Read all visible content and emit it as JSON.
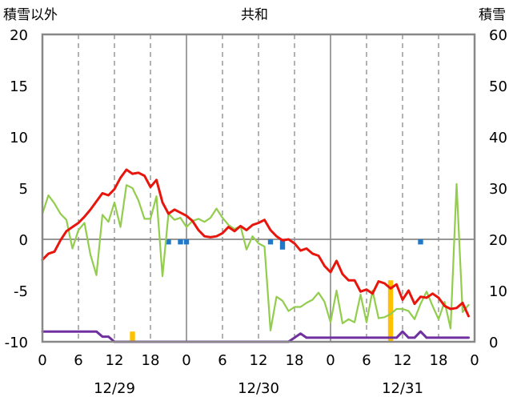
{
  "chart_data": {
    "type": "line",
    "title": "共和",
    "left_axis_label": "積雪以外",
    "right_axis_label": "積雪",
    "x_unit": "hour",
    "x_ticks": [
      "0",
      "6",
      "12",
      "18",
      "0",
      "6",
      "12",
      "18",
      "0",
      "6",
      "12",
      "18",
      "0"
    ],
    "x_tick_hours": [
      0,
      6,
      12,
      18,
      24,
      30,
      36,
      42,
      48,
      54,
      60,
      66,
      72
    ],
    "dates": [
      {
        "label": "12/29",
        "hour": 12
      },
      {
        "label": "12/30",
        "hour": 36
      },
      {
        "label": "12/31",
        "hour": 60
      }
    ],
    "left_ylim": [
      -10,
      20
    ],
    "left_ticks": [
      "-10",
      "-5",
      "0",
      "5",
      "10",
      "15",
      "20"
    ],
    "right_ylim": [
      0,
      60
    ],
    "right_ticks": [
      "0",
      "10",
      "20",
      "30",
      "40",
      "50",
      "60"
    ],
    "grid": {
      "x_minor": "dashed every 6h",
      "x_major": "solid at 0h",
      "y_zero": "solid"
    },
    "series": [
      {
        "axis": "left",
        "color": "#e8150d",
        "width": 3,
        "x": [
          0,
          1,
          2,
          3,
          4,
          5,
          6,
          7,
          8,
          9,
          10,
          11,
          12,
          13,
          14,
          15,
          16,
          17,
          18,
          19,
          20,
          21,
          22,
          23,
          24,
          25,
          26,
          27,
          28,
          29,
          30,
          31,
          32,
          33,
          34,
          35,
          36,
          37,
          38,
          39,
          40,
          41,
          42,
          43,
          44,
          45,
          46,
          47,
          48,
          49,
          50,
          51,
          52,
          53,
          54,
          55,
          56,
          57,
          58,
          59,
          60,
          61,
          62,
          63,
          64,
          65,
          66,
          67,
          68,
          69,
          70,
          71
        ],
        "y": [
          -2,
          -1.4,
          -1.2,
          -0.1,
          0.8,
          1.2,
          1.6,
          2.2,
          2.9,
          3.7,
          4.5,
          4.3,
          4.9,
          6,
          6.8,
          6.4,
          6.5,
          6.2,
          5.1,
          5.8,
          3.6,
          2.5,
          2.9,
          2.6,
          2.3,
          1.8,
          0.9,
          0.3,
          0.2,
          0.3,
          0.6,
          1.2,
          0.8,
          1.3,
          0.9,
          1.4,
          1.6,
          1.9,
          0.9,
          0.3,
          -0.1,
          0,
          -0.4,
          -1.1,
          -0.9,
          -1.4,
          -1.6,
          -2.6,
          -3.2,
          -2.1,
          -3.4,
          -4,
          -4,
          -5.1,
          -4.9,
          -5.3,
          -4.1,
          -4.3,
          -4.8,
          -4.4,
          -5.9,
          -5,
          -6.3,
          -5.6,
          -5.7,
          -5.3,
          -5.7,
          -6.5,
          -6.8,
          -6.7,
          -6.2,
          -7.5
        ]
      },
      {
        "axis": "left",
        "color": "#92cd4c",
        "width": 2.2,
        "x": [
          0,
          1,
          2,
          3,
          4,
          5,
          6,
          7,
          8,
          9,
          10,
          11,
          12,
          13,
          14,
          15,
          16,
          17,
          18,
          19,
          20,
          21,
          22,
          23,
          24,
          25,
          26,
          27,
          28,
          29,
          30,
          31,
          32,
          33,
          34,
          35,
          36,
          37,
          38,
          39,
          40,
          41,
          42,
          43,
          44,
          45,
          46,
          47,
          48,
          49,
          50,
          51,
          52,
          53,
          54,
          55,
          56,
          57,
          58,
          59,
          60,
          61,
          62,
          63,
          64,
          65,
          66,
          67,
          68,
          69,
          70,
          71
        ],
        "y": [
          2.5,
          4.3,
          3.5,
          2.5,
          1.9,
          -0.9,
          0.9,
          1.6,
          -1.5,
          -3.5,
          2.4,
          1.7,
          3.6,
          1.2,
          5.3,
          5,
          3.8,
          2,
          2,
          4.2,
          -3.6,
          2.5,
          1.9,
          2.1,
          1.2,
          1.8,
          2,
          1.7,
          2.1,
          3,
          2.1,
          1.4,
          1,
          1.3,
          -1,
          0.3,
          -0.4,
          -0.7,
          -8.9,
          -5.6,
          -6,
          -7,
          -6.6,
          -6.6,
          -6.2,
          -5.9,
          -5.2,
          -6.1,
          -8.1,
          -5,
          -8.2,
          -7.8,
          -8.1,
          -5.4,
          -8.1,
          -5,
          -7.7,
          -7.6,
          -7.3,
          -6.8,
          -6.8,
          -7,
          -7.8,
          -6.3,
          -5.1,
          -6.5,
          -7.8,
          -6.1,
          -8.7,
          5.4,
          -7.1,
          -6.4
        ]
      },
      {
        "axis": "left",
        "color": "#7030a0",
        "width": 3,
        "x": [
          0,
          9,
          10,
          11,
          12,
          13,
          14,
          15,
          16,
          17,
          18,
          19,
          20,
          21,
          22,
          23,
          24,
          25,
          26,
          27,
          28,
          29,
          30,
          31,
          32,
          33,
          34,
          35,
          36,
          37,
          38,
          39,
          40,
          41,
          42,
          43,
          44,
          45,
          46,
          47,
          48,
          49,
          50,
          51,
          52,
          53,
          54,
          55,
          56,
          57,
          58,
          59,
          60,
          61,
          62,
          63,
          64,
          65,
          66,
          67,
          68,
          69,
          70,
          71
        ],
        "y": [
          -9,
          -9,
          -9.5,
          -9.5,
          -10,
          -10,
          -10,
          -10,
          -10,
          -10,
          -10,
          -10,
          -10,
          -10,
          -10,
          -10,
          -10,
          -10,
          -10,
          -10,
          -10,
          -10,
          -10,
          -10,
          -10,
          -10,
          -10,
          -10,
          -10,
          -10,
          -10,
          -10,
          -10,
          -10,
          -9.6,
          -9.2,
          -9.6,
          -9.6,
          -9.6,
          -9.6,
          -9.6,
          -9.6,
          -9.6,
          -9.6,
          -9.6,
          -9.6,
          -9.6,
          -9.6,
          -9.6,
          -9.6,
          -9.6,
          -9.6,
          -9,
          -9.6,
          -9.6,
          -9,
          -9.6,
          -9.6,
          -9.6,
          -9.6,
          -9.6,
          -9.6,
          -9.6,
          -9.6
        ]
      }
    ],
    "bars": [
      {
        "axis": "right",
        "color": "#ffc000",
        "x": 15,
        "value": 2
      },
      {
        "axis": "right",
        "color": "#ffc000",
        "x": 58,
        "value": 12
      },
      {
        "axis": "left",
        "color": "#1f78c8",
        "x": 21,
        "from": 0,
        "to": -0.5
      },
      {
        "axis": "left",
        "color": "#1f78c8",
        "x": 23,
        "from": 0,
        "to": -0.5
      },
      {
        "axis": "left",
        "color": "#1f78c8",
        "x": 24,
        "from": 0,
        "to": -0.5
      },
      {
        "axis": "left",
        "color": "#1f78c8",
        "x": 38,
        "from": 0,
        "to": -0.5
      },
      {
        "axis": "left",
        "color": "#1f78c8",
        "x": 40,
        "from": 0,
        "to": -1
      },
      {
        "axis": "left",
        "color": "#1f78c8",
        "x": 63,
        "from": 0,
        "to": -0.5
      }
    ]
  }
}
